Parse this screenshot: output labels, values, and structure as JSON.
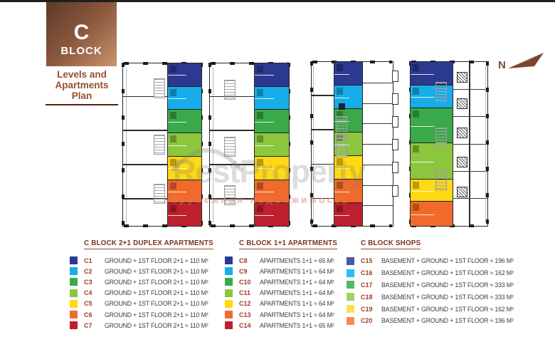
{
  "header": {
    "block_letter": "C",
    "block_word": "BLOCK",
    "subtitle_lines": [
      "Levels and",
      "Apartments",
      "Plan"
    ]
  },
  "compass": {
    "label": "N"
  },
  "watermark": {
    "brand": "RestProperty",
    "tagline": "зарубежная недвижимость"
  },
  "colors": {
    "accent_brown": "#7c4a33",
    "underline_red": "#5c1d10",
    "legend_title": "#76331f",
    "code_text": "#a03c24",
    "body_text": "#3c3c3c",
    "navy": "#2B3990",
    "cyan": "#17ADE8",
    "green": "#39A94A",
    "light_green": "#8CC63E",
    "yellow": "#FFD912",
    "orange": "#F26A2B",
    "red": "#BE202E"
  },
  "plans": [
    {
      "name": "duplex-ground-floor-plan",
      "segments": [
        {
          "color": "#2B3990",
          "flex": 1
        },
        {
          "color": "#17ADE8",
          "flex": 1
        },
        {
          "color": "#39A94A",
          "flex": 1
        },
        {
          "color": "#8CC63E",
          "flex": 1
        },
        {
          "color": "#FFD912",
          "flex": 1
        },
        {
          "color": "#F26A2B",
          "flex": 1
        },
        {
          "color": "#BE202E",
          "flex": 1
        }
      ]
    },
    {
      "name": "duplex-first-floor-plan",
      "segments": [
        {
          "color": "#2B3990",
          "flex": 1
        },
        {
          "color": "#17ADE8",
          "flex": 1
        },
        {
          "color": "#39A94A",
          "flex": 1
        },
        {
          "color": "#8CC63E",
          "flex": 1
        },
        {
          "color": "#FFD912",
          "flex": 1
        },
        {
          "color": "#F26A2B",
          "flex": 1
        },
        {
          "color": "#BE202E",
          "flex": 1
        }
      ]
    },
    {
      "name": "apartments-1plus1-floor-plan",
      "segments": [
        {
          "color": "#2B3990",
          "flex": 1
        },
        {
          "color": "#17ADE8",
          "flex": 1
        },
        {
          "color": "#39A94A",
          "flex": 1
        },
        {
          "color": "#8CC63E",
          "flex": 1
        },
        {
          "color": "#FFD912",
          "flex": 1
        },
        {
          "color": "#F26A2B",
          "flex": 1
        },
        {
          "color": "#BE202E",
          "flex": 1
        }
      ]
    },
    {
      "name": "shops-floor-plan",
      "segments": [
        {
          "color": "#2B3990",
          "flex": 1
        },
        {
          "color": "#17ADE8",
          "flex": 0.95
        },
        {
          "color": "#39A94A",
          "flex": 1.5
        },
        {
          "color": "#8CC63E",
          "flex": 1.55
        },
        {
          "color": "#FFD912",
          "flex": 0.95
        },
        {
          "color": "#F26A2B",
          "flex": 1.05
        }
      ]
    }
  ],
  "legends": [
    {
      "title": "C BLOCK 2+1 DUPLEX APARTMENTS",
      "items": [
        {
          "code": "C1",
          "color": "#2B3990",
          "desc": "GROUND + 1ST FLOOR  2+1 ≈ 110 M²"
        },
        {
          "code": "C2",
          "color": "#17ADE8",
          "desc": "GROUND + 1ST FLOOR  2+1 ≈ 110 M²"
        },
        {
          "code": "C3",
          "color": "#39A94A",
          "desc": "GROUND + 1ST FLOOR  2+1 ≈ 110 M²"
        },
        {
          "code": "C4",
          "color": "#8CC63E",
          "desc": "GROUND + 1ST FLOOR  2+1 ≈ 110 M²"
        },
        {
          "code": "C5",
          "color": "#FFD912",
          "desc": "GROUND + 1ST FLOOR  2+1 ≈ 110 M²"
        },
        {
          "code": "C6",
          "color": "#F26A2B",
          "desc": "GROUND + 1ST FLOOR  2+1 ≈ 110 M²"
        },
        {
          "code": "C7",
          "color": "#BE202E",
          "desc": "GROUND + 1ST FLOOR  2+1 ≈ 110 M²"
        }
      ]
    },
    {
      "title": "C BLOCK 1+1 APARTMENTS",
      "items": [
        {
          "code": "C8",
          "color": "#2B3990",
          "desc": "APARTMENTS 1+1 ≈ 65 M²"
        },
        {
          "code": "C9",
          "color": "#17ADE8",
          "desc": "APARTMENTS 1+1 ≈ 64 M²"
        },
        {
          "code": "C10",
          "color": "#39A94A",
          "desc": "APARTMENTS 1+1 ≈ 64 M²"
        },
        {
          "code": "C11",
          "color": "#8CC63E",
          "desc": "APARTMENTS 1+1 ≈ 64 M²"
        },
        {
          "code": "C12",
          "color": "#FFD912",
          "desc": "APARTMENTS 1+1 ≈ 64 M²"
        },
        {
          "code": "C13",
          "color": "#F26A2B",
          "desc": "APARTMENTS 1+1 ≈ 64 M²"
        },
        {
          "code": "C14",
          "color": "#BE202E",
          "desc": "APARTMENTS 1+1 ≈ 65 M²"
        }
      ]
    },
    {
      "title": "C BLOCK SHOPS",
      "items": [
        {
          "code": "C15",
          "color": "#4A5AA5",
          "desc": "BASEMENT + GROUND + 1ST FLOOR ≈ 196 M²"
        },
        {
          "code": "C16",
          "color": "#29C0F0",
          "desc": "BASEMENT + GROUND + 1ST FLOOR ≈ 162 M²"
        },
        {
          "code": "C17",
          "color": "#55B86B",
          "desc": "BASEMENT + GROUND + 1ST FLOOR ≈ 333 M²"
        },
        {
          "code": "C18",
          "color": "#9ED362",
          "desc": "BASEMENT + GROUND + 1ST FLOOR ≈ 333 M²"
        },
        {
          "code": "C19",
          "color": "#FFE14D",
          "desc": "BASEMENT + GROUND + 1ST FLOOR ≈ 162 M²"
        },
        {
          "code": "C20",
          "color": "#F58A5C",
          "desc": "BASEMENT + GROUND + 1ST FLOOR ≈ 196 M²"
        }
      ]
    }
  ]
}
